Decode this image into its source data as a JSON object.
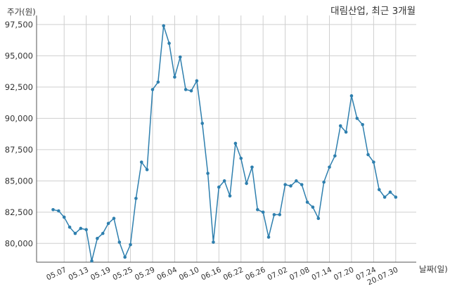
{
  "chart_data": {
    "type": "line",
    "title": "대림산업, 최근 3개월",
    "ylabel": "주가(원)",
    "xlabel": "날짜(일)",
    "ylim": [
      78500,
      98000
    ],
    "yticks": [
      80000,
      82500,
      85000,
      87500,
      90000,
      92500,
      95000,
      97500
    ],
    "ytick_labels": [
      "80,000",
      "82,500",
      "85,000",
      "87,500",
      "90,000",
      "92,500",
      "95,000",
      "97,500"
    ],
    "xtick_labels": [
      "05.07",
      "05.13",
      "05.19",
      "05.25",
      "05.29",
      "06.04",
      "06.10",
      "06.16",
      "06.22",
      "06.26",
      "07.02",
      "07.08",
      "07.14",
      "07.20",
      "07.24",
      "20.07.30"
    ],
    "xtick_index": [
      2,
      6,
      10,
      14,
      18,
      22,
      26,
      30,
      34,
      38,
      42,
      46,
      50,
      54,
      58,
      62
    ],
    "grid": true,
    "series_color": "#2e7fae",
    "values": [
      82700,
      82600,
      82100,
      81300,
      80800,
      81200,
      81100,
      78600,
      80400,
      80800,
      81600,
      82000,
      80100,
      78900,
      79900,
      83600,
      86500,
      85900,
      92300,
      92900,
      97400,
      96000,
      93300,
      94900,
      92300,
      92200,
      93000,
      89600,
      85600,
      80100,
      84500,
      85000,
      83800,
      88000,
      86800,
      84800,
      86100,
      82700,
      82500,
      80500,
      82300,
      82300,
      84700,
      84600,
      85000,
      84700,
      83300,
      82900,
      82000,
      84900,
      86100,
      87000,
      89400,
      88900,
      91800,
      90000,
      89500,
      87100,
      86500,
      84300,
      83700,
      84100,
      83700
    ]
  }
}
